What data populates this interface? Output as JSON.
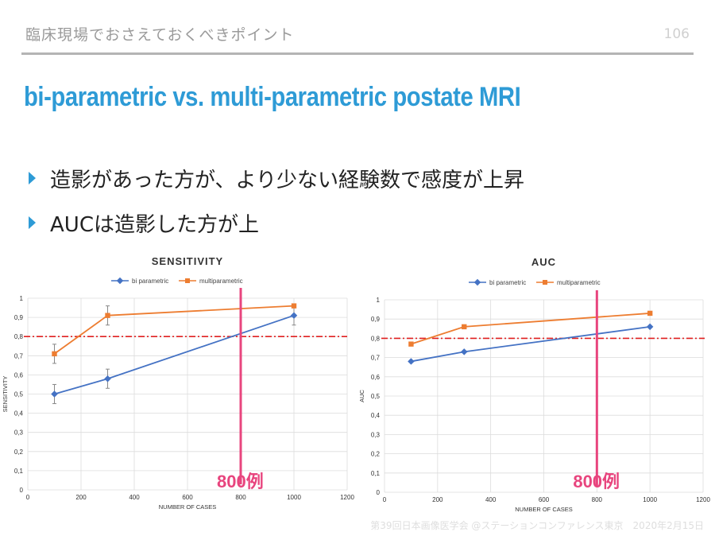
{
  "header": {
    "title": "臨床現場でおさえておくべきポイント",
    "page_number": "106"
  },
  "slide": {
    "title": "bi-parametric vs. multi-parametric postate MRI",
    "bullets": [
      "造影があった方が、より少ない経験数で感度が上昇",
      "AUCは造影した方が上"
    ]
  },
  "footer": {
    "text": "第39回日本画像医学会 @ステーションコンファレンス東京　2020年2月15日"
  },
  "colors": {
    "bi": "#4472c4",
    "multi": "#ed7d31",
    "threshold": "#e02020",
    "marker_line": "#e8457e",
    "accent": "#2e9bd6"
  },
  "chart_data": [
    {
      "type": "line",
      "title": "SENSITIVITY",
      "xlabel": "NUMBER OF CASES",
      "ylabel": "SENSITIVITY",
      "xlim": [
        0,
        1200
      ],
      "ylim": [
        0,
        1
      ],
      "x_ticks": [
        "0",
        "200",
        "400",
        "600",
        "800",
        "1000",
        "1200"
      ],
      "y_ticks": [
        "0",
        "0,1",
        "0,2",
        "0,3",
        "0,4",
        "0,5",
        "0,6",
        "0,7",
        "0,8",
        "0,9",
        "1"
      ],
      "grid": true,
      "legend": "top",
      "series": [
        {
          "name": "bi parametric",
          "x": [
            100,
            300,
            1000
          ],
          "y": [
            0.5,
            0.58,
            0.91
          ],
          "err": [
            0.05,
            0.05,
            0.05
          ]
        },
        {
          "name": "multiparametric",
          "x": [
            100,
            300,
            1000
          ],
          "y": [
            0.71,
            0.91,
            0.96
          ],
          "err": [
            0.05,
            0.05,
            0.0
          ]
        }
      ],
      "threshold_y": 0.8,
      "vertical_line_x": 800,
      "annotation": "800例"
    },
    {
      "type": "line",
      "title": "AUC",
      "xlabel": "NUMBER OF CASES",
      "ylabel": "AUC",
      "xlim": [
        0,
        1200
      ],
      "ylim": [
        0,
        1
      ],
      "x_ticks": [
        "0",
        "200",
        "400",
        "600",
        "800",
        "1000",
        "1200"
      ],
      "y_ticks": [
        "0",
        "0,1",
        "0,2",
        "0,3",
        "0,4",
        "0,5",
        "0,6",
        "0,7",
        "0,8",
        "0,9",
        "1"
      ],
      "grid": true,
      "legend": "top",
      "series": [
        {
          "name": "bi parametric",
          "x": [
            100,
            300,
            1000
          ],
          "y": [
            0.68,
            0.73,
            0.86
          ]
        },
        {
          "name": "multiparametric",
          "x": [
            100,
            300,
            1000
          ],
          "y": [
            0.77,
            0.86,
            0.93
          ]
        }
      ],
      "threshold_y": 0.8,
      "vertical_line_x": 800,
      "annotation": "800例"
    }
  ]
}
